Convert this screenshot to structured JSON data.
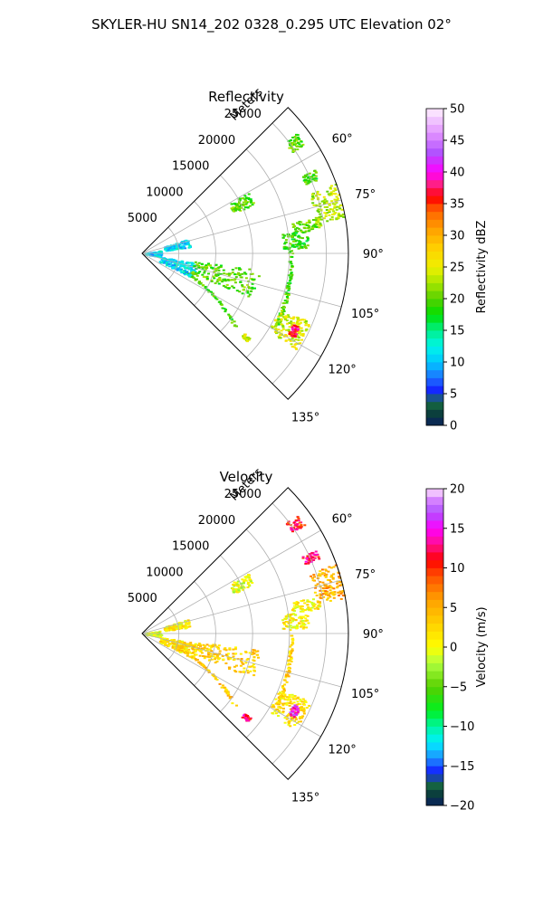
{
  "figure_title": "SKYLER-HU  SN14_202  0328_0.295 UTC Elevation 02°",
  "colors": {
    "grid": "#b0b0b0",
    "axis": "#000000"
  },
  "chart_data": [
    {
      "type": "polar-sector",
      "title": "Reflectivity",
      "radial_label": "Meters",
      "radial_ticks": [
        "5000",
        "10000",
        "15000",
        "20000",
        "25000"
      ],
      "radial_tick_values": [
        5000,
        10000,
        15000,
        20000,
        25000
      ],
      "rlim": [
        0,
        28000
      ],
      "theta_ticks": [
        "60°",
        "75°",
        "90°",
        "105°",
        "120°",
        "135°"
      ],
      "theta_tick_values": [
        60,
        75,
        90,
        105,
        120,
        135
      ],
      "theta_range_deg": [
        45,
        135
      ],
      "theta_zero": "north",
      "theta_direction": "clockwise",
      "grid": true,
      "colorbar": {
        "label": "Reflectivity dBZ",
        "range": [
          0,
          50
        ],
        "ticks": [
          "0",
          "5",
          "10",
          "15",
          "20",
          "25",
          "30",
          "35",
          "40",
          "45",
          "50"
        ],
        "tick_values": [
          0,
          5,
          10,
          15,
          20,
          25,
          30,
          35,
          40,
          45,
          50
        ],
        "colormap_stops": [
          {
            "value": 0,
            "color": "#0a1f5c"
          },
          {
            "value": 2.5,
            "color": "#0b4a33"
          },
          {
            "value": 4,
            "color": "#1f7a4f"
          },
          {
            "value": 5,
            "color": "#1010ff"
          },
          {
            "value": 7.5,
            "color": "#1e70ff"
          },
          {
            "value": 10,
            "color": "#00c8ff"
          },
          {
            "value": 12.5,
            "color": "#00f5e8"
          },
          {
            "value": 15,
            "color": "#00f08a"
          },
          {
            "value": 17.5,
            "color": "#00e000"
          },
          {
            "value": 20,
            "color": "#58d000"
          },
          {
            "value": 22.5,
            "color": "#a8e600"
          },
          {
            "value": 25,
            "color": "#f0f000"
          },
          {
            "value": 28,
            "color": "#ffd000"
          },
          {
            "value": 31,
            "color": "#ffa000"
          },
          {
            "value": 34,
            "color": "#ff6000"
          },
          {
            "value": 36,
            "color": "#ff0000"
          },
          {
            "value": 38,
            "color": "#ff2080"
          },
          {
            "value": 40,
            "color": "#ff00ff"
          },
          {
            "value": 43,
            "color": "#b050ff"
          },
          {
            "value": 46,
            "color": "#e090ff"
          },
          {
            "value": 50,
            "color": "#fff0ff"
          }
        ]
      },
      "echo_regions": [
        {
          "theta": [
            52,
            56
          ],
          "r": [
            24500,
            26500
          ],
          "value": 20
        },
        {
          "theta": [
            70,
            80
          ],
          "r": [
            24000,
            27800
          ],
          "value": 23
        },
        {
          "theta": [
            78,
            82
          ],
          "r": [
            20500,
            24500
          ],
          "value": 21
        },
        {
          "theta": [
            64,
            67
          ],
          "r": [
            24000,
            26000
          ],
          "value": 19
        },
        {
          "theta": [
            82,
            88
          ],
          "r": [
            19000,
            22500
          ],
          "value": 19
        },
        {
          "theta": [
            90,
            120
          ],
          "r": [
            20000,
            20500
          ],
          "value": 19,
          "shape": "line",
          "from": [
            88,
            20000
          ],
          "to": [
            118,
            20500
          ]
        },
        {
          "theta": [
            112,
            122
          ],
          "r": [
            20000,
            24500
          ],
          "value": 24
        },
        {
          "theta": [
            115,
            119
          ],
          "r": [
            22500,
            23500
          ],
          "value": 37
        },
        {
          "theta": [
            128,
            130
          ],
          "r": [
            17500,
            18500
          ],
          "value": 24
        },
        {
          "theta": [
            112,
            130
          ],
          "r": [
            5000,
            16500
          ],
          "value": 19,
          "shape": "line",
          "from": [
            112,
            5500
          ],
          "to": [
            128,
            16000
          ]
        },
        {
          "theta": [
            80,
            100
          ],
          "r": [
            300,
            2500
          ],
          "value": 11
        },
        {
          "theta": [
            72,
            82
          ],
          "r": [
            3000,
            6500
          ],
          "value": 11
        },
        {
          "theta": [
            100,
            116
          ],
          "r": [
            2500,
            7500
          ],
          "value": 11
        },
        {
          "theta": [
            98,
            112
          ],
          "r": [
            7000,
            16000
          ],
          "value": 20
        },
        {
          "theta": [
            60,
            66
          ],
          "r": [
            13500,
            16500
          ],
          "value": 20
        }
      ]
    },
    {
      "type": "polar-sector",
      "title": "Velocity",
      "radial_label": "Meters",
      "radial_ticks": [
        "5000",
        "10000",
        "15000",
        "20000",
        "25000"
      ],
      "radial_tick_values": [
        5000,
        10000,
        15000,
        20000,
        25000
      ],
      "rlim": [
        0,
        28000
      ],
      "theta_ticks": [
        "60°",
        "75°",
        "90°",
        "105°",
        "120°",
        "135°"
      ],
      "theta_tick_values": [
        60,
        75,
        90,
        105,
        120,
        135
      ],
      "theta_range_deg": [
        45,
        135
      ],
      "theta_zero": "north",
      "theta_direction": "clockwise",
      "grid": true,
      "colorbar": {
        "label": "Velocity (m/s)",
        "range": [
          -20,
          20
        ],
        "ticks": [
          "−20",
          "−15",
          "−10",
          "−5",
          "0",
          "5",
          "10",
          "15",
          "20"
        ],
        "tick_values": [
          -20,
          -15,
          -10,
          -5,
          0,
          5,
          10,
          15,
          20
        ],
        "colormap_stops": [
          {
            "value": -20,
            "color": "#0a1f5c"
          },
          {
            "value": -18,
            "color": "#0b4a33"
          },
          {
            "value": -17,
            "color": "#1f7a4f"
          },
          {
            "value": -16,
            "color": "#1010ff"
          },
          {
            "value": -14,
            "color": "#1e90ff"
          },
          {
            "value": -12,
            "color": "#00f0ff"
          },
          {
            "value": -10,
            "color": "#00f5a0"
          },
          {
            "value": -8,
            "color": "#00f020"
          },
          {
            "value": -5,
            "color": "#58d000"
          },
          {
            "value": -2,
            "color": "#b0ff40"
          },
          {
            "value": 0,
            "color": "#ffff00"
          },
          {
            "value": 3,
            "color": "#ffd000"
          },
          {
            "value": 6,
            "color": "#ffa000"
          },
          {
            "value": 9,
            "color": "#ff5000"
          },
          {
            "value": 11,
            "color": "#ff0000"
          },
          {
            "value": 13,
            "color": "#ff1090"
          },
          {
            "value": 15,
            "color": "#ff00ff"
          },
          {
            "value": 17,
            "color": "#b050ff"
          },
          {
            "value": 19,
            "color": "#e090ff"
          },
          {
            "value": 20,
            "color": "#fff0ff"
          }
        ]
      },
      "echo_regions": [
        {
          "theta": [
            52,
            56
          ],
          "r": [
            24500,
            26500
          ],
          "value": 11
        },
        {
          "theta": [
            70,
            80
          ],
          "r": [
            24000,
            27800
          ],
          "value": 5
        },
        {
          "theta": [
            78,
            82
          ],
          "r": [
            20500,
            24500
          ],
          "value": 1
        },
        {
          "theta": [
            64,
            67
          ],
          "r": [
            24000,
            26000
          ],
          "value": 12
        },
        {
          "theta": [
            82,
            88
          ],
          "r": [
            19000,
            22500
          ],
          "value": 1
        },
        {
          "theta": [
            90,
            120
          ],
          "r": [
            20000,
            20500
          ],
          "value": 3,
          "shape": "line",
          "from": [
            88,
            20000
          ],
          "to": [
            118,
            20500
          ]
        },
        {
          "theta": [
            112,
            122
          ],
          "r": [
            20000,
            24500
          ],
          "value": 2
        },
        {
          "theta": [
            115,
            119
          ],
          "r": [
            22500,
            23500
          ],
          "value": 15
        },
        {
          "theta": [
            128,
            130
          ],
          "r": [
            17500,
            18500
          ],
          "value": 12
        },
        {
          "theta": [
            112,
            130
          ],
          "r": [
            5000,
            16500
          ],
          "value": 4,
          "shape": "line",
          "from": [
            112,
            5500
          ],
          "to": [
            128,
            16000
          ]
        },
        {
          "theta": [
            80,
            100
          ],
          "r": [
            300,
            2500
          ],
          "value": 0
        },
        {
          "theta": [
            72,
            82
          ],
          "r": [
            3000,
            6500
          ],
          "value": 1
        },
        {
          "theta": [
            100,
            116
          ],
          "r": [
            2500,
            7500
          ],
          "value": 2
        },
        {
          "theta": [
            98,
            112
          ],
          "r": [
            7000,
            16000
          ],
          "value": 3
        },
        {
          "theta": [
            60,
            66
          ],
          "r": [
            13500,
            16500
          ],
          "value": 0
        }
      ]
    }
  ]
}
